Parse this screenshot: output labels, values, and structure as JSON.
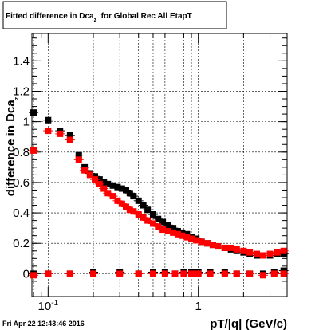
{
  "chart_data": {
    "type": "scatter",
    "title": {
      "prefix": "Fitted difference in Dca",
      "subscript": "z",
      "suffix": "  for Global Rec All EtapT"
    },
    "xlabel": "pT/|q| (GeV/c)",
    "ylabel": {
      "main": "difference in Dca",
      "subscript": "z"
    },
    "x_scale": "log",
    "xlim": [
      0.078,
      3.9
    ],
    "ylim": [
      -0.15,
      1.58
    ],
    "x_ticks": [
      {
        "value": 0.1,
        "base": "10",
        "exp": "-1"
      },
      {
        "value": 1,
        "label": "1"
      }
    ],
    "y_ticks": [
      0,
      0.2,
      0.4,
      0.6,
      0.8,
      1,
      1.2,
      1.4
    ],
    "grid": true,
    "footer": "Fri Apr 22 12:43:46 2016",
    "series": [
      {
        "color": "#000000",
        "marker": "square",
        "points": [
          [
            0.08,
            1.06
          ],
          [
            0.1,
            1.01
          ],
          [
            0.12,
            0.94
          ],
          [
            0.14,
            0.91
          ],
          [
            0.16,
            0.78
          ],
          [
            0.175,
            0.7
          ],
          [
            0.19,
            0.66
          ],
          [
            0.205,
            0.64
          ],
          [
            0.22,
            0.62
          ],
          [
            0.235,
            0.6
          ],
          [
            0.25,
            0.59
          ],
          [
            0.27,
            0.58
          ],
          [
            0.29,
            0.57
          ],
          [
            0.31,
            0.56
          ],
          [
            0.33,
            0.55
          ],
          [
            0.35,
            0.53
          ],
          [
            0.37,
            0.51
          ],
          [
            0.4,
            0.48
          ],
          [
            0.43,
            0.45
          ],
          [
            0.46,
            0.42
          ],
          [
            0.5,
            0.39
          ],
          [
            0.54,
            0.36
          ],
          [
            0.58,
            0.34
          ],
          [
            0.63,
            0.32
          ],
          [
            0.68,
            0.3
          ],
          [
            0.73,
            0.28
          ],
          [
            0.78,
            0.27
          ],
          [
            0.84,
            0.26
          ],
          [
            0.9,
            0.24
          ],
          [
            0.97,
            0.23
          ],
          [
            1.05,
            0.21
          ],
          [
            1.15,
            0.2
          ],
          [
            1.25,
            0.19
          ],
          [
            1.35,
            0.18
          ],
          [
            1.5,
            0.17
          ],
          [
            1.65,
            0.16
          ],
          [
            1.8,
            0.15
          ],
          [
            2.0,
            0.14
          ],
          [
            2.2,
            0.13
          ],
          [
            2.45,
            0.12
          ],
          [
            2.7,
            0.12
          ],
          [
            3.0,
            0.12
          ],
          [
            3.35,
            0.13
          ],
          [
            3.7,
            0.13
          ]
        ],
        "flat_points": [
          [
            0.08,
            0.0
          ],
          [
            0.1,
            0.0
          ],
          [
            0.14,
            0.0
          ],
          [
            0.2,
            0.01
          ],
          [
            0.3,
            0.01
          ],
          [
            0.4,
            0.0
          ],
          [
            0.5,
            0.01
          ],
          [
            0.6,
            0.01
          ],
          [
            0.7,
            0.0
          ],
          [
            0.8,
            0.01
          ],
          [
            0.9,
            0.01
          ],
          [
            1.0,
            0.01
          ],
          [
            1.2,
            0.01
          ],
          [
            1.5,
            0.01
          ],
          [
            1.8,
            0.0
          ],
          [
            2.2,
            0.0
          ],
          [
            2.7,
            0.0
          ],
          [
            3.2,
            0.01
          ],
          [
            3.7,
            0.02
          ]
        ]
      },
      {
        "color": "#ff0000",
        "marker": "square",
        "points": [
          [
            0.08,
            0.81
          ],
          [
            0.1,
            0.94
          ],
          [
            0.12,
            0.92
          ],
          [
            0.14,
            0.88
          ],
          [
            0.16,
            0.75
          ],
          [
            0.175,
            0.68
          ],
          [
            0.19,
            0.65
          ],
          [
            0.205,
            0.62
          ],
          [
            0.22,
            0.59
          ],
          [
            0.235,
            0.56
          ],
          [
            0.25,
            0.53
          ],
          [
            0.27,
            0.51
          ],
          [
            0.29,
            0.48
          ],
          [
            0.31,
            0.46
          ],
          [
            0.33,
            0.44
          ],
          [
            0.35,
            0.42
          ],
          [
            0.37,
            0.41
          ],
          [
            0.4,
            0.39
          ],
          [
            0.43,
            0.37
          ],
          [
            0.46,
            0.35
          ],
          [
            0.5,
            0.33
          ],
          [
            0.54,
            0.31
          ],
          [
            0.58,
            0.29
          ],
          [
            0.63,
            0.28
          ],
          [
            0.68,
            0.27
          ],
          [
            0.73,
            0.26
          ],
          [
            0.78,
            0.25
          ],
          [
            0.84,
            0.24
          ],
          [
            0.9,
            0.23
          ],
          [
            0.97,
            0.22
          ],
          [
            1.05,
            0.21
          ],
          [
            1.15,
            0.2
          ],
          [
            1.25,
            0.19
          ],
          [
            1.35,
            0.18
          ],
          [
            1.5,
            0.17
          ],
          [
            1.65,
            0.17
          ],
          [
            1.8,
            0.16
          ],
          [
            2.0,
            0.15
          ],
          [
            2.2,
            0.14
          ],
          [
            2.45,
            0.13
          ],
          [
            2.7,
            0.12
          ],
          [
            3.0,
            0.13
          ],
          [
            3.35,
            0.14
          ],
          [
            3.7,
            0.15
          ]
        ],
        "flat_points": [
          [
            0.08,
            -0.01
          ],
          [
            0.1,
            0.0
          ],
          [
            0.14,
            0.0
          ],
          [
            0.2,
            0.0
          ],
          [
            0.3,
            0.0
          ],
          [
            0.4,
            0.0
          ],
          [
            0.5,
            0.0
          ],
          [
            0.6,
            0.0
          ],
          [
            0.7,
            0.0
          ],
          [
            0.8,
            0.0
          ],
          [
            0.9,
            0.0
          ],
          [
            1.0,
            0.0
          ],
          [
            1.2,
            0.0
          ],
          [
            1.5,
            0.0
          ],
          [
            1.8,
            0.0
          ],
          [
            2.2,
            0.0
          ],
          [
            2.7,
            -0.01
          ],
          [
            3.2,
            0.0
          ],
          [
            3.7,
            0.0
          ]
        ]
      }
    ]
  }
}
